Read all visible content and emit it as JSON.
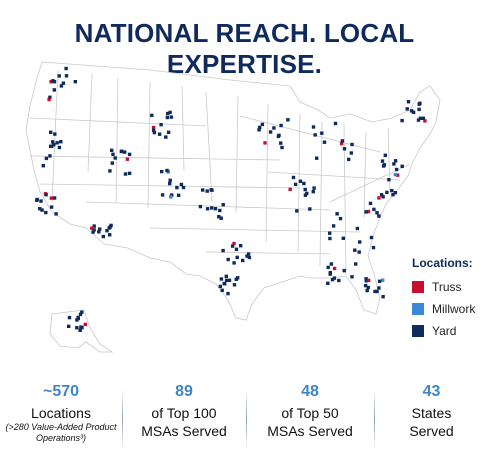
{
  "title": "NATIONAL REACH. LOCAL EXPERTISE.",
  "legend": {
    "title": "Locations:",
    "items": [
      {
        "label": "Truss",
        "color": "#c8102e"
      },
      {
        "label": "Millwork",
        "color": "#3b86d8"
      },
      {
        "label": "Yard",
        "color": "#0f2a5c"
      }
    ]
  },
  "stats": [
    {
      "value": "~570",
      "line1": "Locations",
      "line2": "",
      "footnote": "(>280 Value-Added Product Operations³)"
    },
    {
      "value": "89",
      "line1": "of Top 100",
      "line2": "MSAs Served",
      "footnote": ""
    },
    {
      "value": "48",
      "line1": "of Top 50",
      "line2": "MSAs Served",
      "footnote": ""
    },
    {
      "value": "43",
      "line1": "States",
      "line2": "Served",
      "footnote": ""
    }
  ]
}
